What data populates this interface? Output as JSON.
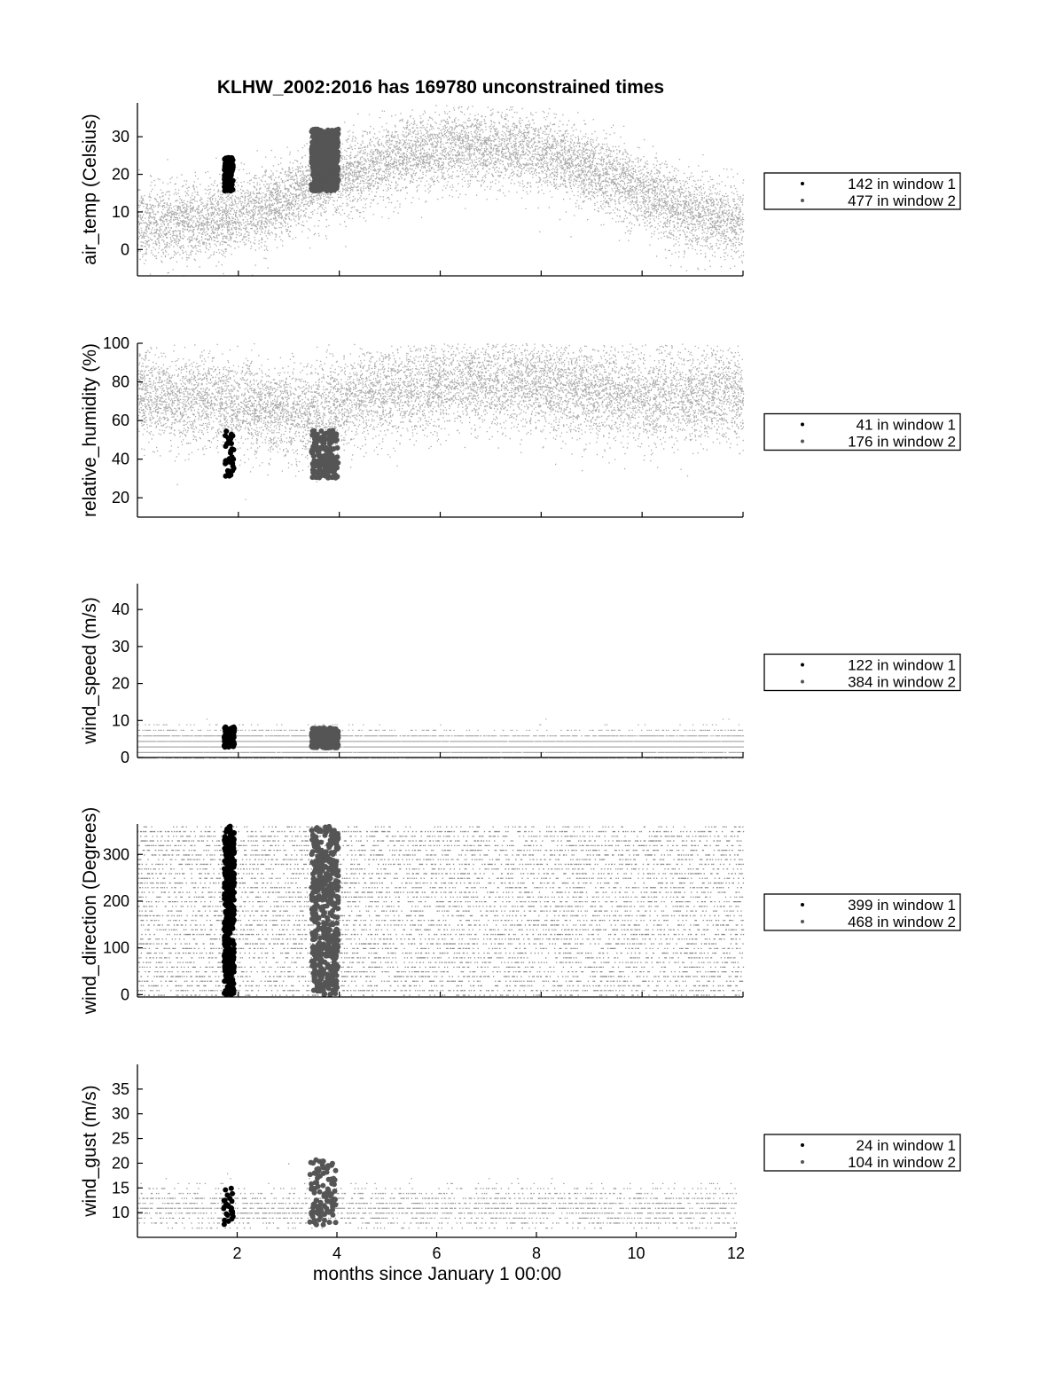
{
  "title": "KLHW_2002:2016 has 169780 unconstrained times",
  "xlabel": "months since January 1 00:00",
  "chart_data": [
    {
      "type": "scatter",
      "ylabel": "air_temp (Celsius)",
      "xlim": [
        0,
        12
      ],
      "ylim": [
        -7,
        39
      ],
      "xticks": [
        2,
        4,
        6,
        8,
        10,
        12
      ],
      "yticks": [
        0,
        10,
        20,
        30
      ],
      "show_xtick_labels": false,
      "background": {
        "color": "#aaaaaa",
        "mean": [
          7,
          8,
          11,
          17,
          22,
          26,
          27.5,
          27,
          24,
          18,
          12,
          8
        ],
        "spread": 9,
        "clip": [
          -7,
          38.5
        ],
        "levels": 0
      },
      "series": [
        {
          "name": "142 in window 1",
          "color": "#000000",
          "x_range": [
            1.72,
            1.9
          ],
          "y_range": [
            15.5,
            24.5
          ],
          "count": 142
        },
        {
          "name": "477 in window 2",
          "color": "#555555",
          "x_range": [
            3.45,
            3.98
          ],
          "y_range": [
            15.5,
            32
          ],
          "count": 477
        }
      ],
      "legend": [
        "142 in window 1",
        "477 in window 2"
      ]
    },
    {
      "type": "scatter",
      "ylabel": "relative_humidity (%)",
      "xlim": [
        0,
        12
      ],
      "ylim": [
        10,
        100
      ],
      "xticks": [
        2,
        4,
        6,
        8,
        10,
        12
      ],
      "yticks": [
        20,
        40,
        60,
        80,
        100
      ],
      "show_xtick_labels": false,
      "background": {
        "color": "#aaaaaa",
        "mean": [
          72,
          70,
          66,
          65,
          72,
          78,
          80,
          80,
          78,
          74,
          72,
          74
        ],
        "spread": 22,
        "clip": [
          12,
          100
        ],
        "levels": 0
      },
      "series": [
        {
          "name": "41 in window 1",
          "color": "#000000",
          "x_range": [
            1.72,
            1.92
          ],
          "y_range": [
            31,
            55
          ],
          "count": 41
        },
        {
          "name": "176 in window 2",
          "color": "#555555",
          "x_range": [
            3.45,
            3.98
          ],
          "y_range": [
            30,
            55
          ],
          "count": 176
        }
      ],
      "legend": [
        "41 in window 1",
        "176 in window 2"
      ]
    },
    {
      "type": "scatter",
      "ylabel": "wind_speed (m/s)",
      "xlim": [
        0,
        12
      ],
      "ylim": [
        0,
        47
      ],
      "xticks": [
        2,
        4,
        6,
        8,
        10,
        12
      ],
      "yticks": [
        0,
        10,
        20,
        30,
        40
      ],
      "show_xtick_labels": false,
      "background": {
        "color": "#aaaaaa",
        "mean": [
          3.5,
          3.5,
          3.5,
          3.5,
          3.2,
          3,
          2.8,
          2.6,
          2.6,
          3,
          3.3,
          3.5
        ],
        "spread": 3.5,
        "clip": [
          0,
          46
        ],
        "levels": 1.5
      },
      "series": [
        {
          "name": "122 in window 1",
          "color": "#000000",
          "x_range": [
            1.72,
            1.92
          ],
          "y_range": [
            2.6,
            8.3
          ],
          "count": 122
        },
        {
          "name": "384 in window 2",
          "color": "#555555",
          "x_range": [
            3.45,
            3.98
          ],
          "y_range": [
            2.6,
            8
          ],
          "count": 384
        }
      ],
      "legend": [
        "122 in window 1",
        "384 in window 2"
      ]
    },
    {
      "type": "scatter",
      "ylabel": "wind_direction (Degrees)",
      "xlim": [
        0,
        12
      ],
      "ylim": [
        -5,
        365
      ],
      "xticks": [
        2,
        4,
        6,
        8,
        10,
        12
      ],
      "yticks": [
        0,
        100,
        200,
        300
      ],
      "show_xtick_labels": false,
      "background": {
        "color": "#888888",
        "mean": [
          180,
          180,
          180,
          180,
          180,
          180,
          180,
          180,
          180,
          180,
          180,
          180
        ],
        "spread": 175,
        "clip": [
          0,
          360
        ],
        "levels": 10,
        "uniform": true
      },
      "series": [
        {
          "name": "399 in window 1",
          "color": "#000000",
          "x_range": [
            1.72,
            1.92
          ],
          "y_range": [
            0,
            360
          ],
          "count": 399
        },
        {
          "name": "468 in window 2",
          "color": "#555555",
          "x_range": [
            3.45,
            3.98
          ],
          "y_range": [
            0,
            360
          ],
          "count": 468
        }
      ],
      "legend": [
        "399 in window 1",
        "468 in window 2"
      ]
    },
    {
      "type": "scatter",
      "ylabel": "wind_gust (m/s)",
      "xlim": [
        0,
        12
      ],
      "ylim": [
        5,
        40
      ],
      "xticks": [
        2,
        4,
        6,
        8,
        10,
        12
      ],
      "yticks": [
        10,
        15,
        20,
        25,
        30,
        35
      ],
      "show_xtick_labels": true,
      "background": {
        "color": "#999999",
        "mean": [
          11,
          11,
          11,
          11,
          11,
          11,
          11,
          11,
          11,
          11,
          11,
          11
        ],
        "spread": 4,
        "clip": [
          7,
          39
        ],
        "levels": 1,
        "sparse": true
      },
      "series": [
        {
          "name": "24 in window 1",
          "color": "#000000",
          "x_range": [
            1.72,
            1.92
          ],
          "y_range": [
            7.5,
            15
          ],
          "count": 24
        },
        {
          "name": "104 in window 2",
          "color": "#555555",
          "x_range": [
            3.45,
            3.98
          ],
          "y_range": [
            7.5,
            21
          ],
          "count": 104
        }
      ],
      "legend": [
        "24 in window 1",
        "104 in window 2"
      ]
    }
  ]
}
